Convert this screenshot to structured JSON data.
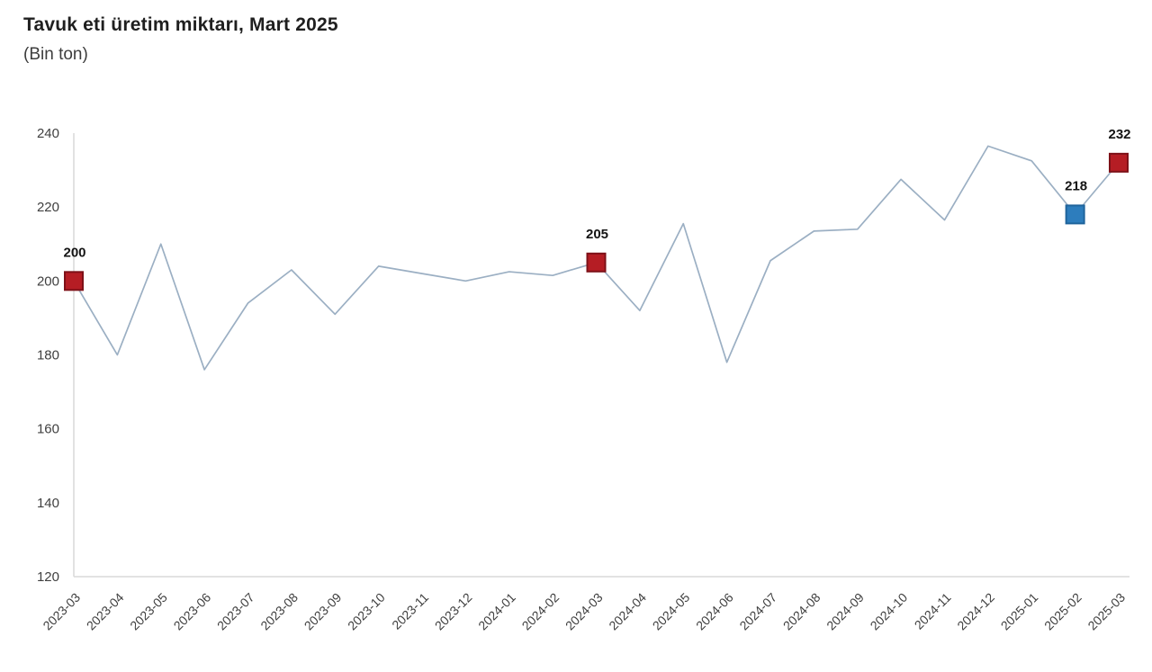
{
  "header": {
    "title": "Tavuk eti üretim miktarı, Mart 2025",
    "subtitle": "(Bin ton)"
  },
  "chart_data": {
    "type": "line",
    "title": "Tavuk eti üretim miktarı, Mart 2025",
    "subtitle": "(Bin ton)",
    "ylabel": "",
    "xlabel": "",
    "unit": "Bin ton",
    "grid": false,
    "legend": "none",
    "ylim": [
      120,
      240
    ],
    "yticks": [
      120,
      140,
      160,
      180,
      200,
      220,
      240
    ],
    "categories": [
      "2023-03",
      "2023-04",
      "2023-05",
      "2023-06",
      "2023-07",
      "2023-08",
      "2023-09",
      "2023-10",
      "2023-11",
      "2023-12",
      "2024-01",
      "2024-02",
      "2024-03",
      "2024-04",
      "2024-05",
      "2024-06",
      "2024-07",
      "2024-08",
      "2024-09",
      "2024-10",
      "2024-11",
      "2024-12",
      "2025-01",
      "2025-02",
      "2025-03"
    ],
    "values": [
      200,
      180,
      210,
      176,
      194,
      203,
      191,
      204,
      202,
      200,
      202.5,
      201.5,
      205,
      192,
      215.5,
      178,
      205.5,
      213.5,
      214,
      227.5,
      216.5,
      236.5,
      232.5,
      218,
      232
    ],
    "colors": {
      "line": "#9bafc3",
      "axis": "#d9d9d9",
      "tick_label": "#3f3f3f",
      "annotation_text": "#141414",
      "marker_red": "#b51d24",
      "marker_red_border": "#7e1118",
      "marker_blue": "#2d7dbd",
      "marker_blue_border": "#1f649c"
    },
    "annotated_points": [
      {
        "category": "2023-03",
        "index": 0,
        "value": 200,
        "label": "200",
        "marker": "red"
      },
      {
        "category": "2024-03",
        "index": 12,
        "value": 205,
        "label": "205",
        "marker": "red"
      },
      {
        "category": "2025-02",
        "index": 23,
        "value": 218,
        "label": "218",
        "marker": "blue"
      },
      {
        "category": "2025-03",
        "index": 24,
        "value": 232,
        "label": "232",
        "marker": "red"
      }
    ]
  }
}
